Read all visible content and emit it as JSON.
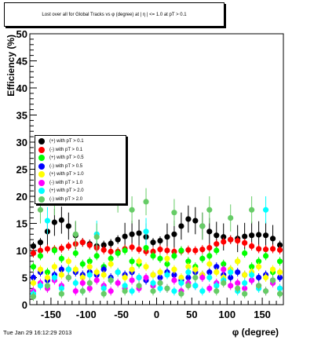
{
  "title": "Lost over all for Global Tracks vs φ (degree) at | η | <= 1.0 at pT > 0.1",
  "datestamp": "Tue Jan 29 16:12:29 2013",
  "chart_data": {
    "type": "scatter",
    "xlabel": "φ (degree)",
    "ylabel": "Efficiency (%)",
    "xlim": [
      -180,
      180
    ],
    "ylim": [
      0,
      50
    ],
    "x_ticks": [
      "-150",
      "-100",
      "-50",
      "0",
      "50",
      "100",
      "150"
    ],
    "y_ticks": [
      "0",
      "5",
      "10",
      "15",
      "20",
      "25",
      "30",
      "35",
      "40",
      "45",
      "50"
    ],
    "legend_position": "left-middle",
    "series": [
      {
        "name": "(+) with pT > 0.1",
        "color": "#000000",
        "points": [
          [
            -175,
            10.8
          ],
          [
            -165,
            11.5
          ],
          [
            -155,
            13.5
          ],
          [
            -145,
            15.2
          ],
          [
            -135,
            15.6
          ],
          [
            -125,
            14.5
          ],
          [
            -115,
            12.8
          ],
          [
            -105,
            11.5
          ],
          [
            -95,
            11.2
          ],
          [
            -85,
            10.8
          ],
          [
            -75,
            11.0
          ],
          [
            -65,
            11.3
          ],
          [
            -55,
            12.0
          ],
          [
            -45,
            12.6
          ],
          [
            -35,
            13.0
          ],
          [
            -25,
            13.2
          ],
          [
            -15,
            12.5
          ],
          [
            -5,
            11.5
          ],
          [
            5,
            11.8
          ],
          [
            15,
            12.5
          ],
          [
            25,
            13.0
          ],
          [
            35,
            14.5
          ],
          [
            45,
            15.8
          ],
          [
            55,
            15.5
          ],
          [
            65,
            14.5
          ],
          [
            75,
            13.5
          ],
          [
            85,
            12.8
          ],
          [
            95,
            12.5
          ],
          [
            105,
            12.0
          ],
          [
            115,
            12.2
          ],
          [
            125,
            12.6
          ],
          [
            135,
            12.8
          ],
          [
            145,
            12.9
          ],
          [
            155,
            12.8
          ],
          [
            165,
            12.2
          ],
          [
            175,
            11.0
          ]
        ]
      },
      {
        "name": "(-) with pT > 0.1",
        "color": "#ff0000",
        "points": [
          [
            -175,
            9.5
          ],
          [
            -165,
            10.0
          ],
          [
            -155,
            10.3
          ],
          [
            -145,
            10.2
          ],
          [
            -135,
            10.4
          ],
          [
            -125,
            10.8
          ],
          [
            -115,
            11.2
          ],
          [
            -105,
            11.5
          ],
          [
            -95,
            11.0
          ],
          [
            -85,
            10.5
          ],
          [
            -75,
            10.1
          ],
          [
            -65,
            9.8
          ],
          [
            -55,
            9.8
          ],
          [
            -45,
            10.3
          ],
          [
            -35,
            10.6
          ],
          [
            -25,
            10.2
          ],
          [
            -15,
            9.8
          ],
          [
            -5,
            9.8
          ],
          [
            5,
            10.2
          ],
          [
            15,
            10.0
          ],
          [
            25,
            9.8
          ],
          [
            35,
            9.9
          ],
          [
            45,
            10.1
          ],
          [
            55,
            10.0
          ],
          [
            65,
            10.2
          ],
          [
            75,
            10.5
          ],
          [
            85,
            11.2
          ],
          [
            95,
            11.6
          ],
          [
            105,
            12.0
          ],
          [
            115,
            11.8
          ],
          [
            125,
            11.4
          ],
          [
            135,
            10.8
          ],
          [
            145,
            10.3
          ],
          [
            155,
            10.2
          ],
          [
            165,
            10.3
          ],
          [
            175,
            10.1
          ]
        ]
      },
      {
        "name": "(+) with pT > 0.5",
        "color": "#00ff00",
        "points": [
          [
            -175,
            7.0
          ],
          [
            -165,
            9.0
          ],
          [
            -155,
            6.0
          ],
          [
            -145,
            10.0
          ],
          [
            -135,
            8.5
          ],
          [
            -125,
            6.5
          ],
          [
            -115,
            9.5
          ],
          [
            -105,
            7.5
          ],
          [
            -95,
            8.0
          ],
          [
            -85,
            9.0
          ],
          [
            -75,
            7.0
          ],
          [
            -65,
            8.5
          ],
          [
            -55,
            9.5
          ],
          [
            -45,
            10.0
          ],
          [
            -35,
            8.0
          ],
          [
            -25,
            7.5
          ],
          [
            -15,
            10.5
          ],
          [
            -5,
            9.0
          ],
          [
            5,
            8.5
          ],
          [
            15,
            7.5
          ],
          [
            25,
            9.0
          ],
          [
            35,
            10.0
          ],
          [
            45,
            8.0
          ],
          [
            55,
            7.0
          ],
          [
            65,
            8.5
          ],
          [
            75,
            9.0
          ],
          [
            85,
            10.0
          ],
          [
            95,
            7.5
          ],
          [
            105,
            6.5
          ],
          [
            115,
            8.0
          ],
          [
            125,
            9.5
          ],
          [
            135,
            7.0
          ],
          [
            145,
            8.0
          ],
          [
            155,
            9.0
          ],
          [
            165,
            6.0
          ],
          [
            175,
            8.0
          ]
        ]
      },
      {
        "name": "(-) with pT > 0.5",
        "color": "#0000ff",
        "points": [
          [
            -175,
            5.0
          ],
          [
            -165,
            6.0
          ],
          [
            -155,
            4.5
          ],
          [
            -145,
            5.5
          ],
          [
            -135,
            6.5
          ],
          [
            -125,
            5.0
          ],
          [
            -115,
            6.0
          ],
          [
            -105,
            5.5
          ],
          [
            -95,
            6.0
          ],
          [
            -85,
            5.5
          ],
          [
            -75,
            6.5
          ],
          [
            -65,
            5.0
          ],
          [
            -55,
            6.0
          ],
          [
            -45,
            5.5
          ],
          [
            -35,
            6.0
          ],
          [
            -25,
            5.0
          ],
          [
            -15,
            4.5
          ],
          [
            -5,
            5.5
          ],
          [
            5,
            5.0
          ],
          [
            15,
            6.0
          ],
          [
            25,
            5.5
          ],
          [
            35,
            4.5
          ],
          [
            45,
            5.0
          ],
          [
            55,
            6.0
          ],
          [
            65,
            5.5
          ],
          [
            75,
            6.0
          ],
          [
            85,
            7.0
          ],
          [
            95,
            5.5
          ],
          [
            105,
            5.0
          ],
          [
            115,
            6.0
          ],
          [
            125,
            5.5
          ],
          [
            135,
            4.5
          ],
          [
            145,
            5.0
          ],
          [
            155,
            5.5
          ],
          [
            165,
            4.5
          ],
          [
            175,
            5.0
          ]
        ]
      },
      {
        "name": "(+) with pT > 1.0",
        "color": "#ffff00",
        "points": [
          [
            -175,
            4.0
          ],
          [
            -165,
            6.5
          ],
          [
            -155,
            5.0
          ],
          [
            -145,
            7.0
          ],
          [
            -135,
            5.5
          ],
          [
            -125,
            8.0
          ],
          [
            -115,
            6.5
          ],
          [
            -105,
            5.0
          ],
          [
            -95,
            7.0
          ],
          [
            -85,
            6.0
          ],
          [
            -75,
            5.5
          ],
          [
            -65,
            7.5
          ],
          [
            -55,
            6.0
          ],
          [
            -45,
            5.0
          ],
          [
            -35,
            6.5
          ],
          [
            -25,
            8.0
          ],
          [
            -15,
            7.0
          ],
          [
            -5,
            5.5
          ],
          [
            5,
            6.0
          ],
          [
            15,
            8.5
          ],
          [
            25,
            6.5
          ],
          [
            35,
            5.0
          ],
          [
            45,
            7.0
          ],
          [
            55,
            6.5
          ],
          [
            65,
            5.5
          ],
          [
            75,
            7.5
          ],
          [
            85,
            6.0
          ],
          [
            95,
            5.0
          ],
          [
            105,
            6.5
          ],
          [
            115,
            8.0
          ],
          [
            125,
            5.5
          ],
          [
            135,
            6.0
          ],
          [
            145,
            7.0
          ],
          [
            155,
            5.0
          ],
          [
            165,
            6.5
          ],
          [
            175,
            6.0
          ]
        ]
      },
      {
        "name": "(-) with pT > 1.0",
        "color": "#ff00ff",
        "points": [
          [
            -175,
            2.5
          ],
          [
            -165,
            4.0
          ],
          [
            -155,
            3.0
          ],
          [
            -145,
            4.5
          ],
          [
            -135,
            3.5
          ],
          [
            -125,
            5.0
          ],
          [
            -115,
            2.5
          ],
          [
            -105,
            4.0
          ],
          [
            -95,
            3.0
          ],
          [
            -85,
            4.5
          ],
          [
            -75,
            3.5
          ],
          [
            -65,
            2.5
          ],
          [
            -55,
            4.0
          ],
          [
            -45,
            3.0
          ],
          [
            -35,
            4.5
          ],
          [
            -25,
            3.0
          ],
          [
            -15,
            5.0
          ],
          [
            -5,
            3.5
          ],
          [
            5,
            4.0
          ],
          [
            15,
            3.0
          ],
          [
            25,
            4.5
          ],
          [
            35,
            2.5
          ],
          [
            45,
            4.0
          ],
          [
            55,
            3.5
          ],
          [
            65,
            5.0
          ],
          [
            75,
            3.0
          ],
          [
            85,
            4.0
          ],
          [
            95,
            6.5
          ],
          [
            105,
            3.5
          ],
          [
            115,
            4.0
          ],
          [
            125,
            3.0
          ],
          [
            135,
            4.5
          ],
          [
            145,
            3.5
          ],
          [
            155,
            2.5
          ],
          [
            165,
            4.0
          ],
          [
            175,
            3.0
          ]
        ]
      },
      {
        "name": "(+) with pT > 2.0",
        "color": "#00ffff",
        "points": [
          [
            -175,
            2.0
          ],
          [
            -165,
            3.5
          ],
          [
            -155,
            15.5
          ],
          [
            -145,
            5.0
          ],
          [
            -135,
            3.0
          ],
          [
            -125,
            6.5
          ],
          [
            -115,
            4.0
          ],
          [
            -105,
            2.5
          ],
          [
            -95,
            5.5
          ],
          [
            -85,
            13.0
          ],
          [
            -75,
            3.0
          ],
          [
            -65,
            4.5
          ],
          [
            -55,
            6.0
          ],
          [
            -45,
            3.5
          ],
          [
            -35,
            2.5
          ],
          [
            -25,
            5.0
          ],
          [
            -15,
            13.5
          ],
          [
            -5,
            4.0
          ],
          [
            5,
            3.0
          ],
          [
            15,
            5.5
          ],
          [
            25,
            2.5
          ],
          [
            35,
            4.0
          ],
          [
            45,
            6.0
          ],
          [
            55,
            3.5
          ],
          [
            65,
            2.5
          ],
          [
            75,
            5.0
          ],
          [
            85,
            3.5
          ],
          [
            95,
            4.5
          ],
          [
            105,
            6.0
          ],
          [
            115,
            2.5
          ],
          [
            125,
            4.0
          ],
          [
            135,
            5.5
          ],
          [
            145,
            3.0
          ],
          [
            155,
            17.5
          ],
          [
            165,
            4.5
          ],
          [
            175,
            3.0
          ]
        ]
      },
      {
        "name": "(-) with pT > 2.0",
        "color": "#66cc66",
        "points": [
          [
            -175,
            1.5
          ],
          [
            -165,
            17.5
          ],
          [
            -155,
            3.5
          ],
          [
            -145,
            19.0
          ],
          [
            -135,
            2.0
          ],
          [
            -125,
            5.0
          ],
          [
            -115,
            13.0
          ],
          [
            -105,
            2.5
          ],
          [
            -95,
            4.0
          ],
          [
            -85,
            12.5
          ],
          [
            -75,
            2.0
          ],
          [
            -65,
            4.5
          ],
          [
            -55,
            19.5
          ],
          [
            -45,
            2.5
          ],
          [
            -35,
            17.5
          ],
          [
            -25,
            3.5
          ],
          [
            -15,
            19.0
          ],
          [
            -5,
            2.5
          ],
          [
            5,
            4.0
          ],
          [
            15,
            3.0
          ],
          [
            25,
            17.0
          ],
          [
            35,
            2.0
          ],
          [
            45,
            3.5
          ],
          [
            55,
            5.0
          ],
          [
            65,
            14.5
          ],
          [
            75,
            17.5
          ],
          [
            85,
            2.5
          ],
          [
            95,
            4.0
          ],
          [
            105,
            16.0
          ],
          [
            115,
            3.0
          ],
          [
            125,
            2.0
          ],
          [
            135,
            17.5
          ],
          [
            145,
            3.5
          ],
          [
            155,
            2.5
          ],
          [
            165,
            4.5
          ],
          [
            175,
            2.0
          ]
        ]
      }
    ]
  }
}
